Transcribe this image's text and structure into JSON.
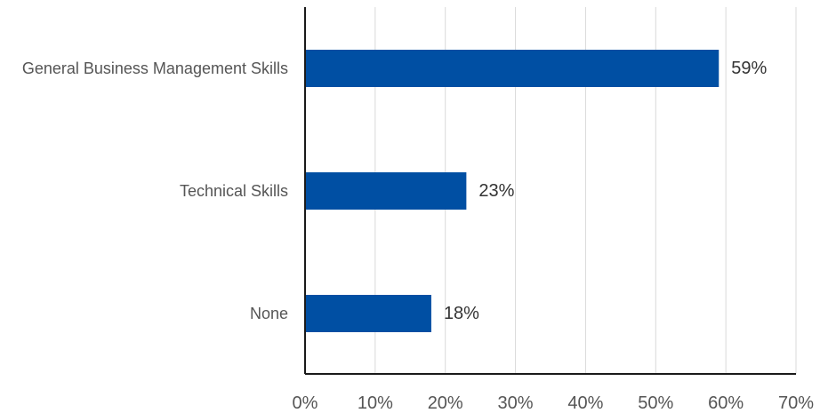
{
  "chart_data": {
    "type": "bar",
    "orientation": "horizontal",
    "categories": [
      "General Business Management Skills",
      "Technical Skills",
      "None"
    ],
    "values": [
      59,
      23,
      18
    ],
    "data_labels": [
      "59%",
      "23%",
      "18%"
    ],
    "xlim": [
      0,
      70
    ],
    "x_ticks": [
      0,
      10,
      20,
      30,
      40,
      50,
      60,
      70
    ],
    "x_tick_labels": [
      "0%",
      "10%",
      "20%",
      "30%",
      "40%",
      "50%",
      "60%",
      "70%"
    ],
    "grid": "vertical",
    "legend": "none",
    "colors": {
      "bar": "#004fa3"
    }
  }
}
